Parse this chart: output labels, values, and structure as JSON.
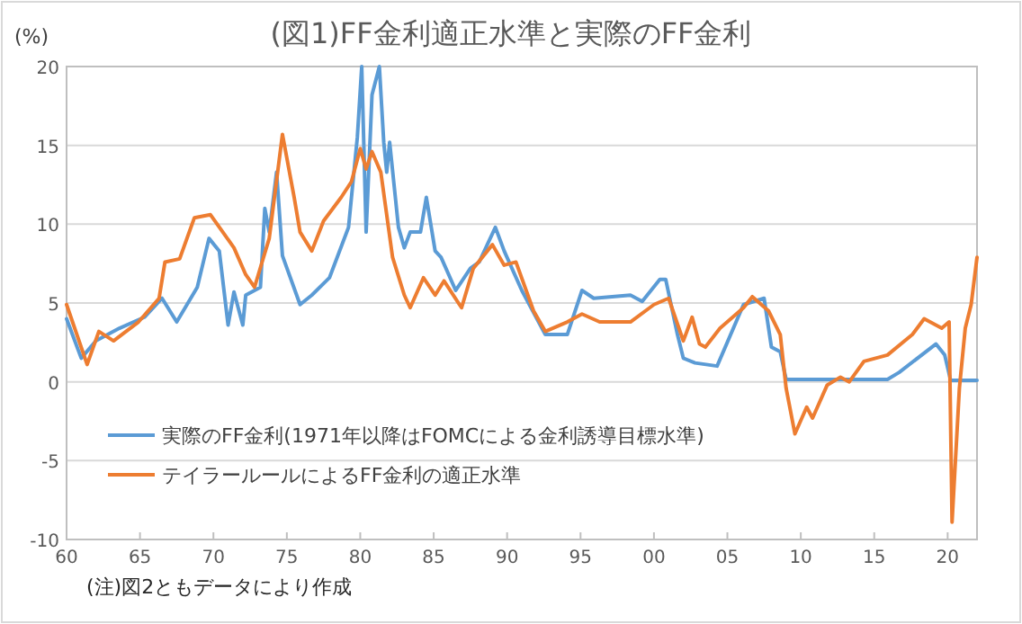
{
  "chart_data": {
    "type": "line",
    "title": "(図1)FF金利適正水準と実際のFF金利",
    "ylabel": "(%)",
    "xlim": [
      1960,
      2022
    ],
    "ylim": [
      -10,
      20
    ],
    "xticks": [
      {
        "value": 1960,
        "label": "60"
      },
      {
        "value": 1965,
        "label": "65"
      },
      {
        "value": 1970,
        "label": "70"
      },
      {
        "value": 1975,
        "label": "75"
      },
      {
        "value": 1980,
        "label": "80"
      },
      {
        "value": 1985,
        "label": "85"
      },
      {
        "value": 1990,
        "label": "90"
      },
      {
        "value": 1995,
        "label": "95"
      },
      {
        "value": 2000,
        "label": "00"
      },
      {
        "value": 2005,
        "label": "05"
      },
      {
        "value": 2010,
        "label": "10"
      },
      {
        "value": 2015,
        "label": "15"
      },
      {
        "value": 2020,
        "label": "20"
      }
    ],
    "yticks": [
      -10,
      -5,
      0,
      5,
      10,
      15,
      20
    ],
    "grid": "y",
    "legend": "bottom left",
    "marker": "none",
    "line_style": "solid",
    "series": [
      {
        "name": "実際のFF金利(1971年以降はFOMCによる金利誘導目標水準)",
        "color": "#5b9bd5",
        "x": [
          1960.0,
          1961.0,
          1962.0,
          1963.6,
          1965.3,
          1966.5,
          1967.5,
          1968.9,
          1969.7,
          1970.4,
          1971.0,
          1971.4,
          1972.0,
          1972.2,
          1973.2,
          1973.5,
          1973.8,
          1974.3,
          1974.7,
          1975.9,
          1976.7,
          1977.9,
          1979.2,
          1979.8,
          1980.1,
          1980.4,
          1980.8,
          1981.3,
          1981.6,
          1981.8,
          1982.0,
          1982.6,
          1983.0,
          1983.4,
          1984.1,
          1984.5,
          1985.1,
          1985.5,
          1986.5,
          1987.5,
          1988.1,
          1989.2,
          1989.8,
          1991.0,
          1992.6,
          1994.1,
          1995.1,
          1995.9,
          1998.4,
          1999.2,
          2000.4,
          2000.8,
          2001.6,
          2002.0,
          2002.8,
          2004.3,
          2006.1,
          2007.5,
          2008.0,
          2008.6,
          2009.0,
          2015.9,
          2016.7,
          2019.2,
          2019.8,
          2020.2,
          2022.0
        ],
        "values": [
          4.0,
          1.5,
          2.6,
          3.4,
          4.1,
          5.3,
          3.8,
          6.0,
          9.1,
          8.3,
          3.6,
          5.7,
          3.6,
          5.5,
          6.0,
          11.0,
          9.5,
          13.3,
          8.0,
          4.9,
          5.5,
          6.6,
          9.8,
          15.5,
          20,
          9.5,
          18.2,
          20,
          15.2,
          13.3,
          15.2,
          9.8,
          8.5,
          9.5,
          9.5,
          11.7,
          8.3,
          7.9,
          5.8,
          7.2,
          7.6,
          9.8,
          8.3,
          5.8,
          3.0,
          3.0,
          5.8,
          5.3,
          5.5,
          5.1,
          6.5,
          6.5,
          3.0,
          1.5,
          1.2,
          1.0,
          4.9,
          5.3,
          2.2,
          1.9,
          0.15,
          0.15,
          0.6,
          2.4,
          1.7,
          0.1,
          0.1
        ]
      },
      {
        "name": "テイラールールによるFF金利の適正水準",
        "color": "#ed7d31",
        "x": [
          1960.0,
          1961.4,
          1962.2,
          1963.2,
          1964.9,
          1966.3,
          1966.7,
          1967.7,
          1968.7,
          1969.8,
          1971.4,
          1972.2,
          1972.8,
          1973.8,
          1974.7,
          1975.5,
          1975.9,
          1976.7,
          1977.5,
          1978.7,
          1979.4,
          1980.0,
          1980.4,
          1980.8,
          1981.4,
          1982.2,
          1983.0,
          1983.4,
          1984.3,
          1985.1,
          1985.7,
          1986.9,
          1987.7,
          1989.0,
          1989.8,
          1990.6,
          1991.8,
          1992.6,
          1994.1,
          1995.1,
          1996.3,
          1998.4,
          2000.0,
          2001.0,
          2002.0,
          2002.6,
          2003.1,
          2003.5,
          2004.5,
          2006.1,
          2006.7,
          2007.8,
          2008.6,
          2009.0,
          2009.6,
          2010.4,
          2010.8,
          2011.8,
          2012.7,
          2013.3,
          2014.3,
          2015.9,
          2017.6,
          2018.4,
          2019.6,
          2020.1,
          2020.3,
          2020.8,
          2021.2,
          2021.6,
          2022.0
        ],
        "values": [
          4.9,
          1.1,
          3.2,
          2.6,
          3.8,
          5.3,
          7.6,
          7.8,
          10.4,
          10.6,
          8.5,
          6.8,
          6.0,
          9.1,
          15.7,
          11.7,
          9.5,
          8.3,
          10.2,
          11.7,
          12.7,
          14.8,
          13.5,
          14.6,
          13.3,
          7.9,
          5.5,
          4.7,
          6.6,
          5.5,
          6.4,
          4.7,
          7.2,
          8.7,
          7.4,
          7.6,
          4.5,
          3.2,
          3.8,
          4.3,
          3.8,
          3.8,
          4.9,
          5.3,
          2.6,
          4.1,
          2.4,
          2.2,
          3.4,
          4.7,
          5.4,
          4.5,
          3.0,
          -0.4,
          -3.3,
          -1.6,
          -2.3,
          -0.2,
          0.3,
          0.0,
          1.3,
          1.7,
          3.0,
          4.0,
          3.4,
          3.8,
          -8.9,
          -0.4,
          3.4,
          4.9,
          7.9
        ]
      }
    ],
    "annotations": [
      "(注)図2ともデータにより作成"
    ]
  }
}
